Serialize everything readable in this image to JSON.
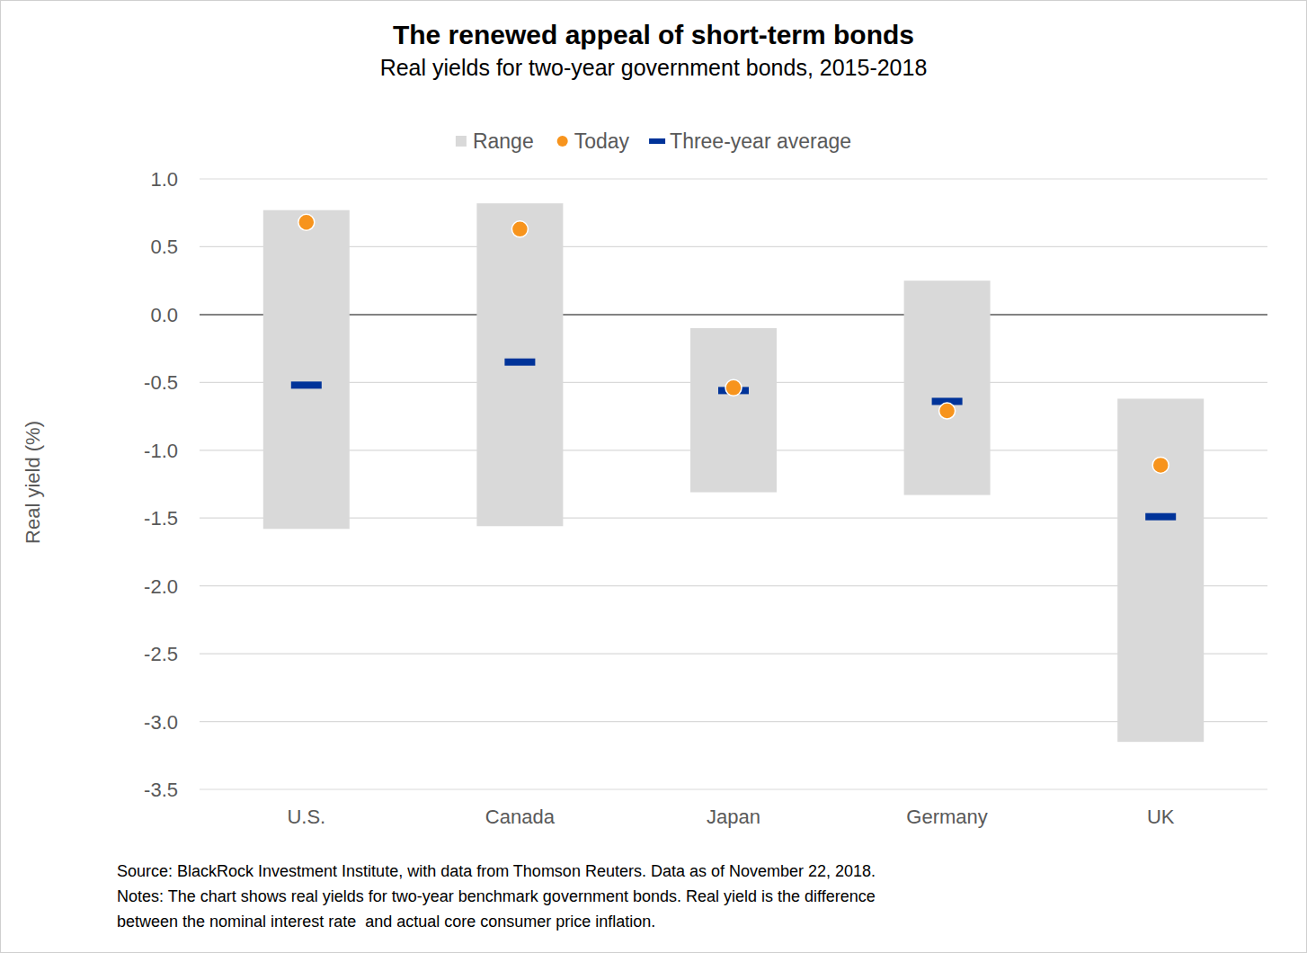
{
  "chart_data": {
    "type": "range",
    "title": "The renewed appeal of short-term bonds",
    "subtitle": "Real yields for two-year government bonds, 2015-2018",
    "y_label": "Real yield (%)",
    "categories": [
      "U.S.",
      "Canada",
      "Japan",
      "Germany",
      "UK"
    ],
    "series": [
      {
        "name": "Range",
        "type": "range",
        "color": "#d9d9d9",
        "low": [
          -1.58,
          -1.56,
          -1.31,
          -1.33,
          -3.15
        ],
        "high": [
          0.77,
          0.82,
          -0.1,
          0.25,
          -0.62
        ]
      },
      {
        "name": "Today",
        "type": "scatter",
        "marker": "circle",
        "color": "#f7941d",
        "values": [
          0.68,
          0.63,
          -0.54,
          -0.71,
          -1.11
        ]
      },
      {
        "name": "Three-year average",
        "type": "scatter",
        "marker": "dash",
        "color": "#003399",
        "values": [
          -0.52,
          -0.35,
          -0.56,
          -0.64,
          -1.49
        ]
      }
    ],
    "ylim": [
      -3.5,
      1.0
    ],
    "yticks": [
      {
        "value": 1,
        "label": "1.0"
      },
      0.5,
      {
        "value": 0,
        "label": "0.0"
      },
      -0.5,
      {
        "value": -1,
        "label": "-1.0"
      },
      -1.5,
      {
        "value": -2,
        "label": "-2.0"
      },
      -2.5,
      {
        "value": -3,
        "label": "-3.0"
      },
      -3.5
    ],
    "grid": true,
    "legend": "top",
    "annotations": [
      "Source: BlackRock Investment Institute, with data from Thomson Reuters. Data as of November 22, 2018.",
      "Notes: The chart shows real yields for two-year benchmark government bonds. Real yield is the difference",
      "between the nominal interest rate  and actual core consumer price inflation."
    ]
  }
}
